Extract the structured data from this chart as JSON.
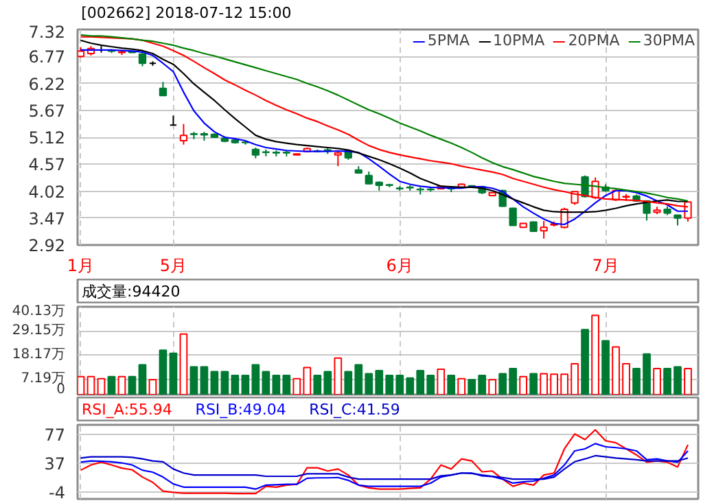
{
  "chart_data": [
    {
      "type": "candlestick",
      "title": "[002662] 2018-07-12 15:00",
      "categories": [
        "1月",
        null,
        null,
        null,
        null,
        null,
        null,
        null,
        null,
        "5月",
        null,
        null,
        null,
        null,
        null,
        null,
        null,
        null,
        null,
        null,
        null,
        null,
        null,
        null,
        null,
        null,
        null,
        null,
        null,
        null,
        null,
        "6月",
        null,
        null,
        null,
        null,
        null,
        null,
        null,
        null,
        null,
        null,
        null,
        null,
        null,
        null,
        null,
        null,
        null,
        null,
        null,
        "7月",
        null,
        null,
        null,
        null,
        null,
        null,
        null,
        null
      ],
      "ohlc": [
        [
          6.77,
          6.96,
          6.75,
          6.88
        ],
        [
          6.83,
          6.98,
          6.79,
          6.93
        ],
        [
          6.9,
          6.98,
          6.85,
          6.9
        ],
        [
          6.9,
          6.92,
          6.84,
          6.88
        ],
        [
          6.85,
          6.9,
          6.8,
          6.86
        ],
        [
          6.87,
          6.88,
          6.84,
          6.85
        ],
        [
          6.82,
          6.85,
          6.57,
          6.63
        ],
        [
          6.63,
          6.67,
          6.58,
          6.63
        ],
        [
          6.12,
          6.25,
          5.97,
          5.97
        ],
        [
          5.37,
          5.56,
          5.37,
          5.37
        ],
        [
          5.05,
          5.39,
          4.97,
          5.16
        ],
        [
          5.19,
          5.23,
          5.08,
          5.18
        ],
        [
          5.19,
          5.23,
          5.05,
          5.17
        ],
        [
          5.18,
          5.2,
          5.12,
          5.12
        ],
        [
          5.1,
          5.14,
          5.02,
          5.04
        ],
        [
          5.06,
          5.08,
          4.99,
          5.01
        ],
        [
          5.02,
          5.06,
          4.97,
          5.01
        ],
        [
          4.87,
          4.91,
          4.69,
          4.76
        ],
        [
          4.82,
          4.87,
          4.73,
          4.81
        ],
        [
          4.81,
          4.85,
          4.73,
          4.8
        ],
        [
          4.81,
          4.85,
          4.73,
          4.8
        ],
        [
          4.76,
          4.79,
          4.76,
          4.78
        ],
        [
          4.83,
          4.91,
          4.81,
          4.89
        ],
        [
          4.84,
          4.87,
          4.81,
          4.83
        ],
        [
          4.86,
          4.91,
          4.78,
          4.85
        ],
        [
          4.76,
          4.84,
          4.53,
          4.8
        ],
        [
          4.84,
          4.86,
          4.66,
          4.7
        ],
        [
          4.45,
          4.53,
          4.39,
          4.39
        ],
        [
          4.34,
          4.42,
          4.16,
          4.17
        ],
        [
          4.2,
          4.22,
          4.03,
          4.14
        ],
        [
          4.15,
          4.17,
          4.1,
          4.14
        ],
        [
          4.08,
          4.12,
          4.03,
          4.07
        ],
        [
          4.1,
          4.14,
          4.03,
          4.09
        ],
        [
          4.06,
          4.1,
          3.95,
          4.05
        ],
        [
          4.06,
          4.09,
          4.01,
          4.05
        ],
        [
          4.07,
          4.13,
          4.06,
          4.12
        ],
        [
          4.08,
          4.1,
          4.0,
          4.07
        ],
        [
          4.1,
          4.18,
          4.09,
          4.16
        ],
        [
          4.13,
          4.14,
          4.09,
          4.12
        ],
        [
          4.11,
          4.13,
          3.96,
          3.99
        ],
        [
          3.93,
          4.0,
          3.93,
          3.99
        ],
        [
          4.03,
          4.05,
          3.7,
          3.71
        ],
        [
          3.67,
          3.68,
          3.32,
          3.32
        ],
        [
          3.28,
          3.37,
          3.27,
          3.36
        ],
        [
          3.39,
          3.4,
          3.19,
          3.2
        ],
        [
          3.21,
          3.41,
          3.05,
          3.28
        ],
        [
          3.33,
          3.4,
          3.3,
          3.35
        ],
        [
          3.28,
          3.68,
          3.26,
          3.65
        ],
        [
          3.78,
          4.01,
          3.74,
          4.01
        ],
        [
          4.31,
          4.34,
          3.89,
          3.91
        ],
        [
          3.89,
          4.3,
          3.86,
          4.22
        ],
        [
          4.1,
          4.16,
          4.01,
          4.03
        ],
        [
          3.84,
          4.05,
          3.82,
          4.03
        ],
        [
          3.9,
          3.96,
          3.82,
          3.91
        ],
        [
          3.92,
          3.95,
          3.8,
          3.82
        ],
        [
          3.82,
          3.83,
          3.42,
          3.57
        ],
        [
          3.59,
          3.7,
          3.55,
          3.63
        ],
        [
          3.65,
          3.71,
          3.53,
          3.57
        ],
        [
          3.53,
          3.53,
          3.32,
          3.47
        ],
        [
          3.47,
          3.8,
          3.4,
          3.8
        ]
      ],
      "colors": [
        "#ff0000",
        "#ff0000",
        "#000000",
        "#007a33",
        "#ff0000",
        "#007a33",
        "#007a33",
        "#000000",
        "#007a33",
        "#000000",
        "#ff0000",
        "#007a33",
        "#007a33",
        "#007a33",
        "#007a33",
        "#007a33",
        "#007a33",
        "#007a33",
        "#007a33",
        "#007a33",
        "#007a33",
        "#ff0000",
        "#ff0000",
        "#007a33",
        "#007a33",
        "#ff0000",
        "#007a33",
        "#007a33",
        "#007a33",
        "#007a33",
        "#007a33",
        "#007a33",
        "#007a33",
        "#007a33",
        "#007a33",
        "#ff0000",
        "#007a33",
        "#ff0000",
        "#007a33",
        "#007a33",
        "#ff0000",
        "#007a33",
        "#007a33",
        "#ff0000",
        "#007a33",
        "#ff0000",
        "#ff0000",
        "#ff0000",
        "#ff0000",
        "#007a33",
        "#ff0000",
        "#007a33",
        "#ff0000",
        "#ff0000",
        "#007a33",
        "#007a33",
        "#ff0000",
        "#007a33",
        "#007a33",
        "#ff0000"
      ],
      "series": [
        {
          "type": "line",
          "name": "5PMA",
          "color": "#0000ff",
          "values": [
            6.9,
            6.9,
            6.9,
            6.9,
            6.89,
            6.88,
            6.86,
            6.79,
            6.63,
            6.46,
            6.04,
            5.66,
            5.41,
            5.23,
            5.12,
            5.09,
            5.05,
            4.97,
            4.91,
            4.88,
            4.85,
            4.84,
            4.83,
            4.83,
            4.83,
            4.84,
            4.83,
            4.81,
            4.68,
            4.53,
            4.37,
            4.22,
            4.16,
            4.12,
            4.1,
            4.09,
            4.08,
            4.08,
            4.11,
            4.11,
            4.08,
            4.01,
            3.86,
            3.7,
            3.57,
            3.45,
            3.36,
            3.34,
            3.45,
            3.61,
            3.78,
            3.93,
            4.03,
            4.03,
            3.99,
            3.92,
            3.82,
            3.74,
            3.61,
            3.61
          ]
        },
        {
          "type": "line",
          "name": "10PMA",
          "color": "#000000",
          "values": [
            7.1,
            7.04,
            7.0,
            6.97,
            6.94,
            6.92,
            6.89,
            6.83,
            6.71,
            6.61,
            6.42,
            6.21,
            6.04,
            5.87,
            5.68,
            5.5,
            5.33,
            5.16,
            5.08,
            5.03,
            5.0,
            4.97,
            4.95,
            4.93,
            4.91,
            4.89,
            4.86,
            4.8,
            4.73,
            4.66,
            4.58,
            4.49,
            4.39,
            4.28,
            4.2,
            4.12,
            4.11,
            4.1,
            4.1,
            4.08,
            4.03,
            3.95,
            3.86,
            3.78,
            3.7,
            3.63,
            3.6,
            3.59,
            3.59,
            3.59,
            3.6,
            3.63,
            3.67,
            3.72,
            3.76,
            3.79,
            3.82,
            3.84,
            3.81,
            3.81
          ]
        },
        {
          "type": "line",
          "name": "20PMA",
          "color": "#ff0000",
          "values": [
            7.17,
            7.17,
            7.16,
            7.15,
            7.14,
            7.13,
            7.1,
            7.04,
            6.98,
            6.89,
            6.79,
            6.67,
            6.54,
            6.42,
            6.29,
            6.19,
            6.08,
            5.98,
            5.87,
            5.77,
            5.68,
            5.6,
            5.51,
            5.44,
            5.35,
            5.27,
            5.18,
            5.06,
            4.95,
            4.87,
            4.81,
            4.76,
            4.72,
            4.68,
            4.64,
            4.61,
            4.58,
            4.53,
            4.49,
            4.45,
            4.41,
            4.36,
            4.28,
            4.22,
            4.16,
            4.1,
            4.05,
            4.01,
            3.96,
            3.93,
            3.89,
            3.86,
            3.85,
            3.84,
            3.83,
            3.81,
            3.78,
            3.76,
            3.72,
            3.7
          ]
        },
        {
          "type": "line",
          "name": "30PMA",
          "color": "#008000",
          "values": [
            7.21,
            7.19,
            7.19,
            7.17,
            7.15,
            7.13,
            7.1,
            7.08,
            7.04,
            7.0,
            6.94,
            6.89,
            6.83,
            6.78,
            6.72,
            6.66,
            6.6,
            6.54,
            6.48,
            6.42,
            6.36,
            6.3,
            6.22,
            6.15,
            6.07,
            5.98,
            5.88,
            5.78,
            5.68,
            5.6,
            5.51,
            5.41,
            5.33,
            5.25,
            5.16,
            5.08,
            5.0,
            4.91,
            4.81,
            4.7,
            4.6,
            4.52,
            4.46,
            4.39,
            4.32,
            4.27,
            4.22,
            4.18,
            4.16,
            4.14,
            4.12,
            4.09,
            4.07,
            4.04,
            4.01,
            3.98,
            3.94,
            3.89,
            3.86,
            3.82
          ]
        }
      ],
      "ylim": [
        2.92,
        7.32
      ],
      "yticks": [
        2.92,
        3.47,
        4.02,
        4.57,
        5.12,
        5.67,
        6.22,
        6.77,
        7.32
      ],
      "grid": true,
      "legend": "top right"
    },
    {
      "type": "bar",
      "title": "成交量:94420",
      "categories": [
        null,
        null,
        null,
        null,
        null,
        null,
        null,
        null,
        null,
        null,
        null,
        null,
        null,
        null,
        null,
        null,
        null,
        null,
        null,
        null,
        null,
        null,
        null,
        null,
        null,
        null,
        null,
        null,
        null,
        null,
        null,
        null,
        null,
        null,
        null,
        null,
        null,
        null,
        null,
        null,
        null,
        null,
        null,
        null,
        null,
        null,
        null,
        null,
        null,
        null,
        null,
        null,
        null,
        null,
        null,
        null,
        null,
        null,
        null,
        null
      ],
      "values": [
        8.2,
        8.2,
        7.3,
        8.2,
        8.2,
        8.2,
        13.6,
        6.8,
        20.3,
        18.9,
        27.7,
        12.7,
        12.7,
        10.5,
        10.5,
        8.8,
        8.8,
        13.6,
        10.5,
        8.8,
        8.8,
        7.3,
        12.4,
        8.8,
        10.5,
        16.7,
        10.5,
        13.6,
        9.6,
        11.0,
        8.8,
        8.8,
        7.6,
        11.0,
        8.8,
        11.6,
        8.8,
        7.3,
        6.8,
        8.8,
        6.8,
        9.6,
        11.9,
        8.2,
        9.6,
        9.6,
        9.3,
        9.3,
        14.1,
        29.7,
        36.2,
        24.6,
        21.8,
        14.1,
        11.9,
        18.6,
        11.9,
        11.9,
        12.7,
        11.9
      ],
      "colors": [
        "#ff0000",
        "#ff0000",
        "#ff0000",
        "#007a33",
        "#ff0000",
        "#007a33",
        "#007a33",
        "#ff0000",
        "#007a33",
        "#007a33",
        "#ff0000",
        "#007a33",
        "#007a33",
        "#007a33",
        "#007a33",
        "#007a33",
        "#007a33",
        "#007a33",
        "#007a33",
        "#007a33",
        "#007a33",
        "#ff0000",
        "#ff0000",
        "#007a33",
        "#007a33",
        "#ff0000",
        "#007a33",
        "#007a33",
        "#007a33",
        "#007a33",
        "#007a33",
        "#007a33",
        "#007a33",
        "#007a33",
        "#007a33",
        "#ff0000",
        "#007a33",
        "#ff0000",
        "#007a33",
        "#007a33",
        "#ff0000",
        "#007a33",
        "#007a33",
        "#ff0000",
        "#007a33",
        "#ff0000",
        "#ff0000",
        "#ff0000",
        "#ff0000",
        "#007a33",
        "#ff0000",
        "#007a33",
        "#ff0000",
        "#ff0000",
        "#007a33",
        "#007a33",
        "#ff0000",
        "#007a33",
        "#007a33",
        "#ff0000"
      ],
      "ylim": [
        0,
        40.13
      ],
      "yticks": [
        0,
        {
          "value": 7.19,
          "label": "7.19万"
        },
        {
          "value": 18.17,
          "label": "18.17万"
        },
        {
          "value": 29.15,
          "label": "29.15万"
        },
        {
          "value": 40.13,
          "label": "40.13万"
        }
      ],
      "grid": true,
      "tick_labels": "y"
    },
    {
      "type": "line",
      "categories": [
        null,
        null,
        null,
        null,
        null,
        null,
        null,
        null,
        null,
        null,
        null,
        null,
        null,
        null,
        null,
        null,
        null,
        null,
        null,
        null,
        null,
        null,
        null,
        null,
        null,
        null,
        null,
        null,
        null,
        null,
        null,
        null,
        null,
        null,
        null,
        null,
        null,
        null,
        null,
        null,
        null,
        null,
        null,
        null,
        null,
        null,
        null,
        null,
        null,
        null,
        null,
        null,
        null,
        null,
        null,
        null,
        null,
        null,
        null,
        null
      ],
      "series": [
        {
          "name": "RSI_A:55.94",
          "color": "#ff0000",
          "values": [
            26.7,
            34.1,
            38.1,
            34.1,
            29.6,
            27.3,
            17,
            9.6,
            -3,
            -4.7,
            -5.9,
            -5.9,
            -5.9,
            -5.9,
            -5.9,
            -6.4,
            -6.4,
            -6.4,
            3.9,
            2.7,
            5.6,
            6.7,
            30.1,
            30.1,
            25.6,
            28.4,
            19.9,
            5.6,
            1.6,
            -0.1,
            -0.1,
            -0.1,
            1,
            1.6,
            14.1,
            34.1,
            28.4,
            42.7,
            39.9,
            24.4,
            25.6,
            14.1,
            3.9,
            8.4,
            5.6,
            19.9,
            22.7,
            57,
            78.1,
            70.1,
            83.9,
            68.4,
            65.6,
            57,
            48.4,
            38.1,
            39.9,
            38.1,
            31.3,
            62.7
          ]
        },
        {
          "name": "RSI_B:49.04",
          "color": "#0000ff",
          "values": [
            38.1,
            39.9,
            39.3,
            38.7,
            37,
            34.1,
            26.7,
            23.9,
            17,
            7.3,
            2.7,
            2.7,
            2.7,
            2.7,
            2.7,
            2.7,
            2.7,
            -0.1,
            5.6,
            6.1,
            6.7,
            6.7,
            15.3,
            15.9,
            15.9,
            16.4,
            12.4,
            5.6,
            3.9,
            3.9,
            3.9,
            3.9,
            3.9,
            3.9,
            8.4,
            17,
            19.9,
            22.7,
            22.7,
            18.7,
            17.6,
            14.1,
            8.4,
            10.1,
            11.3,
            15.3,
            19.9,
            34.1,
            54.1,
            57,
            64.4,
            59.9,
            58.7,
            57,
            54.1,
            41.6,
            42.7,
            39.9,
            38.1,
            54.1
          ]
        },
        {
          "name": "RSI_C:41.59",
          "color": "#0000cc",
          "values": [
            43.9,
            45.6,
            45.6,
            45.6,
            45.6,
            45,
            42.7,
            39.9,
            38.7,
            28.4,
            22.7,
            19.9,
            19.9,
            19.9,
            19.9,
            19.9,
            19.9,
            19.9,
            18.1,
            18.1,
            18.1,
            18.1,
            21.6,
            21.6,
            21.6,
            21.6,
            17,
            14.1,
            14.1,
            14.1,
            14.1,
            14.1,
            14.1,
            14.1,
            14.1,
            18.7,
            19.9,
            22.7,
            22.1,
            19.9,
            18.1,
            16.4,
            14.1,
            14.1,
            14.1,
            14.1,
            17,
            28.4,
            38.7,
            42.7,
            47.3,
            45.6,
            43.9,
            42.7,
            41.6,
            39.9,
            39.9,
            39.9,
            39.9,
            43.9
          ]
        }
      ],
      "ylim": [
        -14,
        91
      ],
      "yticks": [
        -4,
        37,
        77
      ],
      "grid": true,
      "tick_labels": "y"
    }
  ]
}
